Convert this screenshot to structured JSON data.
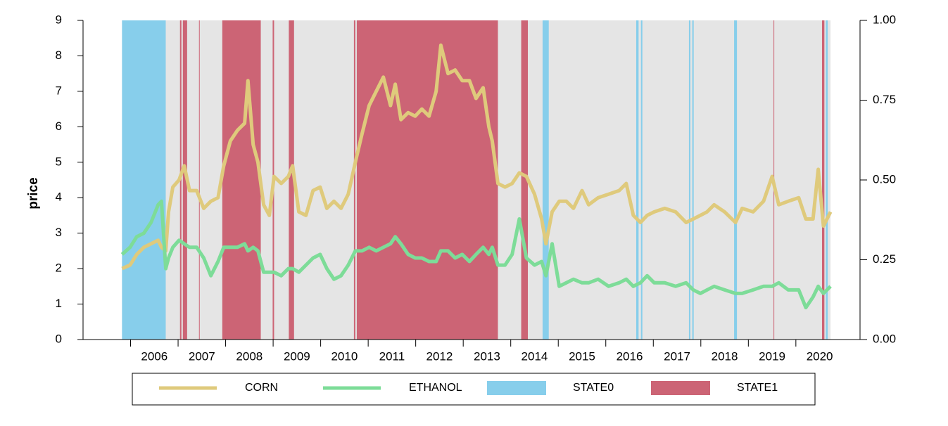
{
  "chart_data": {
    "type": "line",
    "ylabel": "price",
    "xlim": [
      2005,
      2021.35
    ],
    "xticks": [
      2006,
      2007,
      2008,
      2009,
      2010,
      2011,
      2012,
      2013,
      2014,
      2015,
      2016,
      2017,
      2018,
      2019,
      2020
    ],
    "ylim": [
      0,
      9
    ],
    "yticks": [
      0,
      1,
      2,
      3,
      4,
      5,
      6,
      7,
      8,
      9
    ],
    "y2lim": [
      0,
      1
    ],
    "y2ticks": [
      {
        "value": 0,
        "label": "0.00"
      },
      {
        "value": 0.25,
        "label": "0.25"
      },
      {
        "value": 0.5,
        "label": "0.50"
      },
      {
        "value": 0.75,
        "label": "0.75"
      },
      {
        "value": 1,
        "label": "1.00"
      }
    ],
    "x": [
      2005.82,
      2005.99,
      2006.13,
      2006.28,
      2006.43,
      2006.58,
      2006.65,
      2006.74,
      2006.8,
      2006.89,
      2007.02,
      2007.13,
      2007.24,
      2007.39,
      2007.54,
      2007.69,
      2007.84,
      2007.96,
      2008.1,
      2008.25,
      2008.4,
      2008.47,
      2008.58,
      2008.68,
      2008.8,
      2008.92,
      2009.02,
      2009.17,
      2009.32,
      2009.41,
      2009.54,
      2009.69,
      2009.84,
      2009.99,
      2010.13,
      2010.28,
      2010.43,
      2010.58,
      2010.73,
      2010.87,
      2011.02,
      2011.17,
      2011.32,
      2011.47,
      2011.57,
      2011.69,
      2011.84,
      2011.99,
      2012.13,
      2012.28,
      2012.43,
      2012.53,
      2012.68,
      2012.83,
      2012.98,
      2013.13,
      2013.27,
      2013.42,
      2013.54,
      2013.61,
      2013.73,
      2013.88,
      2014.03,
      2014.18,
      2014.33,
      2014.5,
      2014.65,
      2014.74,
      2014.87,
      2015.02,
      2015.17,
      2015.32,
      2015.5,
      2015.64,
      2015.84,
      2016.06,
      2016.28,
      2016.43,
      2016.58,
      2016.73,
      2016.87,
      2017.02,
      2017.24,
      2017.47,
      2017.69,
      2017.84,
      2017.99,
      2018.13,
      2018.28,
      2018.5,
      2018.73,
      2018.87,
      2019.1,
      2019.32,
      2019.5,
      2019.64,
      2019.84,
      2020.06,
      2020.21,
      2020.36,
      2020.47,
      2020.58,
      2020.73
    ],
    "series": [
      {
        "name": "CORN",
        "color": "#dfca7c",
        "values": [
          2.0,
          2.1,
          2.4,
          2.6,
          2.7,
          2.8,
          2.6,
          2.5,
          3.6,
          4.3,
          4.5,
          4.9,
          4.2,
          4.2,
          3.7,
          3.9,
          4.0,
          4.9,
          5.6,
          5.9,
          6.1,
          7.3,
          5.5,
          5.0,
          3.8,
          3.5,
          4.6,
          4.4,
          4.6,
          4.9,
          3.6,
          3.5,
          4.2,
          4.3,
          3.7,
          3.9,
          3.7,
          4.1,
          5.0,
          5.8,
          6.6,
          7.0,
          7.4,
          6.6,
          7.2,
          6.2,
          6.4,
          6.3,
          6.5,
          6.3,
          7.0,
          8.3,
          7.5,
          7.6,
          7.3,
          7.3,
          6.8,
          7.1,
          6.0,
          5.6,
          4.4,
          4.3,
          4.4,
          4.7,
          4.6,
          4.1,
          3.4,
          2.7,
          3.6,
          3.9,
          3.9,
          3.7,
          4.2,
          3.8,
          4.0,
          4.1,
          4.2,
          4.4,
          3.5,
          3.3,
          3.5,
          3.6,
          3.7,
          3.6,
          3.3,
          3.4,
          3.5,
          3.6,
          3.8,
          3.6,
          3.3,
          3.7,
          3.6,
          3.9,
          4.6,
          3.8,
          3.9,
          4.0,
          3.4,
          3.4,
          4.8,
          3.2,
          3.6
        ]
      },
      {
        "name": "ETHANOL",
        "color": "#7ddc98",
        "values": [
          2.4,
          2.6,
          2.9,
          3.0,
          3.3,
          3.8,
          3.9,
          2.0,
          2.3,
          2.6,
          2.8,
          2.7,
          2.6,
          2.6,
          2.3,
          1.8,
          2.2,
          2.6,
          2.6,
          2.6,
          2.7,
          2.5,
          2.6,
          2.5,
          1.9,
          1.9,
          1.9,
          1.8,
          2.0,
          2.0,
          1.9,
          2.1,
          2.3,
          2.4,
          2.0,
          1.7,
          1.8,
          2.1,
          2.5,
          2.5,
          2.6,
          2.5,
          2.6,
          2.7,
          2.9,
          2.7,
          2.4,
          2.3,
          2.3,
          2.2,
          2.2,
          2.5,
          2.5,
          2.3,
          2.4,
          2.2,
          2.4,
          2.6,
          2.4,
          2.6,
          2.1,
          2.1,
          2.4,
          3.4,
          2.3,
          2.1,
          2.2,
          1.8,
          2.7,
          1.5,
          1.6,
          1.7,
          1.6,
          1.6,
          1.7,
          1.5,
          1.6,
          1.7,
          1.5,
          1.6,
          1.8,
          1.6,
          1.6,
          1.5,
          1.6,
          1.4,
          1.3,
          1.4,
          1.5,
          1.4,
          1.3,
          1.3,
          1.4,
          1.5,
          1.5,
          1.6,
          1.4,
          1.4,
          0.9,
          1.2,
          1.5,
          1.3,
          1.5
        ]
      }
    ],
    "states": [
      {
        "name": "STATE0",
        "color": "#87ceeb",
        "intervals": [
          [
            2005.82,
            2006.74
          ],
          [
            2014.67,
            2014.8
          ],
          [
            2016.64,
            2016.69
          ],
          [
            2016.74,
            2016.77
          ],
          [
            2017.75,
            2017.78
          ],
          [
            2017.82,
            2017.85
          ],
          [
            2018.7,
            2018.76
          ],
          [
            2020.63,
            2020.67
          ]
        ]
      },
      {
        "name": "STATE1",
        "color": "#cc6475",
        "intervals": [
          [
            2007.04,
            2007.07
          ],
          [
            2007.1,
            2007.19
          ],
          [
            2007.44,
            2007.45
          ],
          [
            2007.93,
            2008.74
          ],
          [
            2008.99,
            2009.02
          ],
          [
            2009.33,
            2009.44
          ],
          [
            2010.7,
            2010.73
          ],
          [
            2010.76,
            2013.73
          ],
          [
            2014.22,
            2014.36
          ],
          [
            2019.53,
            2019.54
          ],
          [
            2020.55,
            2020.6
          ]
        ]
      }
    ]
  }
}
